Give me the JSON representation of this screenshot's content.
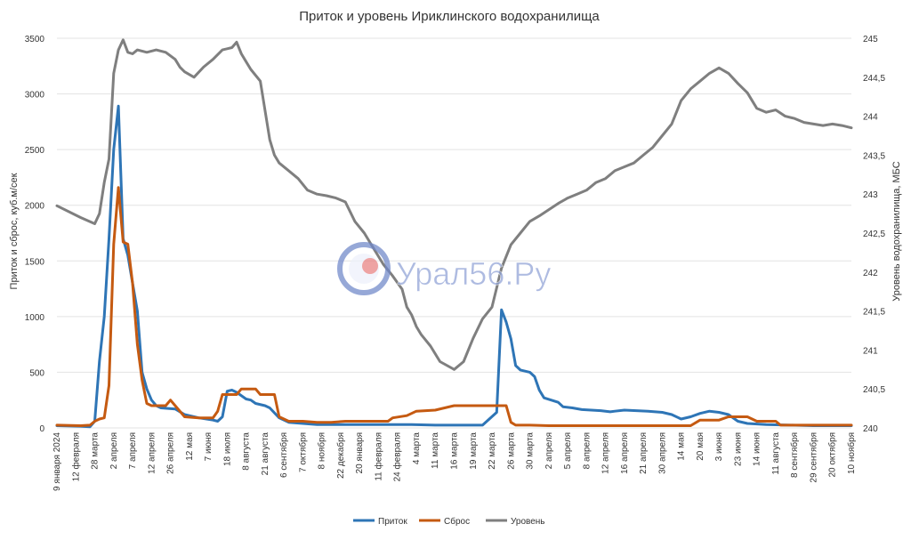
{
  "watermark": {
    "text": "Урал56.Ру"
  },
  "chart_data": {
    "type": "line",
    "title": "Приток и уровень Ириклинского водохранилища",
    "ylabel": "Приток и сброс, куб.м/сек",
    "y2label": "Уровень водохранилища, МБС",
    "ylim": [
      0,
      3500
    ],
    "y2lim": [
      240,
      245
    ],
    "yticks": [
      "0",
      "500",
      "1000",
      "1500",
      "2000",
      "2500",
      "3000",
      "3500"
    ],
    "y2ticks": [
      "240",
      "240,5",
      "241",
      "241,5",
      "242",
      "242,5",
      "243",
      "243,5",
      "244",
      "244,5",
      "245"
    ],
    "xticks": [
      "9 января 2024",
      "12 февраля",
      "28 марта",
      "2 апреля",
      "7 апреля",
      "12 апреля",
      "26 апреля",
      "12 мая",
      "7 июня",
      "18 июля",
      "8 августа",
      "21 августа",
      "6 сентября",
      "7 октября",
      "8 ноября",
      "22 декабря",
      "20 января",
      "11 февраля",
      "24 февраля",
      "4 марта",
      "11 марта",
      "16 марта",
      "19 марта",
      "22 марта",
      "26 марта",
      "30 марта",
      "2 апреля",
      "5 апреля",
      "8 апреля",
      "12 апреля",
      "16 апреля",
      "21 апреля",
      "30 апреля",
      "14 мая",
      "20 мая",
      "3 июня",
      "23 июня",
      "14 июня",
      "11 августа",
      "8 сентября",
      "29 сентября",
      "20 октября",
      "10 ноября"
    ],
    "grid": true,
    "legend_position": "bottom",
    "n_points": 169,
    "series": [
      {
        "name": "Приток",
        "axis": "left",
        "color": "#2E75B6",
        "points": [
          [
            0,
            20
          ],
          [
            5,
            15
          ],
          [
            7,
            10
          ],
          [
            8,
            60
          ],
          [
            9,
            600
          ],
          [
            10,
            1000
          ],
          [
            11,
            1700
          ],
          [
            12,
            2500
          ],
          [
            13,
            2890
          ],
          [
            14,
            1700
          ],
          [
            15,
            1550
          ],
          [
            16,
            1300
          ],
          [
            17,
            1050
          ],
          [
            18,
            500
          ],
          [
            19,
            350
          ],
          [
            20,
            250
          ],
          [
            21,
            200
          ],
          [
            22,
            180
          ],
          [
            25,
            170
          ],
          [
            27,
            120
          ],
          [
            30,
            90
          ],
          [
            33,
            70
          ],
          [
            34,
            60
          ],
          [
            35,
            100
          ],
          [
            36,
            330
          ],
          [
            37,
            340
          ],
          [
            38,
            320
          ],
          [
            40,
            260
          ],
          [
            41,
            250
          ],
          [
            42,
            220
          ],
          [
            44,
            200
          ],
          [
            45,
            180
          ],
          [
            47,
            90
          ],
          [
            49,
            50
          ],
          [
            52,
            40
          ],
          [
            55,
            30
          ],
          [
            60,
            30
          ],
          [
            70,
            30
          ],
          [
            75,
            30
          ],
          [
            80,
            25
          ],
          [
            90,
            25
          ],
          [
            93,
            140
          ],
          [
            94,
            1060
          ],
          [
            95,
            950
          ],
          [
            96,
            800
          ],
          [
            97,
            560
          ],
          [
            98,
            520
          ],
          [
            100,
            500
          ],
          [
            101,
            460
          ],
          [
            102,
            340
          ],
          [
            103,
            270
          ],
          [
            106,
            230
          ],
          [
            107,
            190
          ],
          [
            109,
            180
          ],
          [
            111,
            165
          ],
          [
            113,
            160
          ],
          [
            115,
            155
          ],
          [
            117,
            145
          ],
          [
            118,
            150
          ],
          [
            120,
            160
          ],
          [
            125,
            150
          ],
          [
            128,
            140
          ],
          [
            130,
            120
          ],
          [
            132,
            80
          ],
          [
            134,
            100
          ],
          [
            136,
            130
          ],
          [
            138,
            150
          ],
          [
            140,
            140
          ],
          [
            142,
            120
          ],
          [
            144,
            60
          ],
          [
            146,
            40
          ],
          [
            150,
            30
          ],
          [
            155,
            25
          ],
          [
            160,
            20
          ],
          [
            165,
            20
          ],
          [
            168,
            20
          ]
        ]
      },
      {
        "name": "Сброс",
        "axis": "left",
        "color": "#C55A11",
        "points": [
          [
            0,
            25
          ],
          [
            5,
            20
          ],
          [
            7,
            25
          ],
          [
            8,
            60
          ],
          [
            9,
            80
          ],
          [
            10,
            90
          ],
          [
            11,
            380
          ],
          [
            12,
            1650
          ],
          [
            13,
            2160
          ],
          [
            14,
            1670
          ],
          [
            15,
            1650
          ],
          [
            16,
            1300
          ],
          [
            17,
            750
          ],
          [
            18,
            430
          ],
          [
            19,
            220
          ],
          [
            20,
            200
          ],
          [
            22,
            200
          ],
          [
            23,
            200
          ],
          [
            24,
            250
          ],
          [
            25,
            200
          ],
          [
            27,
            100
          ],
          [
            30,
            90
          ],
          [
            33,
            90
          ],
          [
            34,
            150
          ],
          [
            35,
            300
          ],
          [
            36,
            300
          ],
          [
            38,
            300
          ],
          [
            39,
            350
          ],
          [
            42,
            350
          ],
          [
            43,
            300
          ],
          [
            46,
            300
          ],
          [
            47,
            100
          ],
          [
            49,
            60
          ],
          [
            52,
            60
          ],
          [
            55,
            50
          ],
          [
            58,
            50
          ],
          [
            61,
            60
          ],
          [
            70,
            60
          ],
          [
            71,
            90
          ],
          [
            74,
            110
          ],
          [
            76,
            150
          ],
          [
            80,
            160
          ],
          [
            84,
            200
          ],
          [
            92,
            200
          ],
          [
            93,
            200
          ],
          [
            94,
            200
          ],
          [
            95,
            200
          ],
          [
            96,
            50
          ],
          [
            97,
            25
          ],
          [
            100,
            25
          ],
          [
            104,
            20
          ],
          [
            110,
            20
          ],
          [
            120,
            20
          ],
          [
            130,
            20
          ],
          [
            134,
            20
          ],
          [
            136,
            70
          ],
          [
            140,
            70
          ],
          [
            142,
            100
          ],
          [
            146,
            100
          ],
          [
            148,
            60
          ],
          [
            152,
            60
          ],
          [
            153,
            25
          ],
          [
            160,
            25
          ],
          [
            168,
            25
          ]
        ]
      },
      {
        "name": "Уровень",
        "axis": "right",
        "color": "#7F7F7F",
        "points": [
          [
            0,
            242.85
          ],
          [
            5,
            242.7
          ],
          [
            8,
            242.62
          ],
          [
            9,
            242.75
          ],
          [
            10,
            243.15
          ],
          [
            11,
            243.45
          ],
          [
            12,
            244.55
          ],
          [
            13,
            244.85
          ],
          [
            14,
            244.98
          ],
          [
            15,
            244.82
          ],
          [
            16,
            244.8
          ],
          [
            17,
            244.85
          ],
          [
            19,
            244.82
          ],
          [
            21,
            244.85
          ],
          [
            23,
            244.82
          ],
          [
            25,
            244.73
          ],
          [
            26,
            244.63
          ],
          [
            27,
            244.57
          ],
          [
            29,
            244.5
          ],
          [
            31,
            244.63
          ],
          [
            33,
            244.73
          ],
          [
            35,
            244.85
          ],
          [
            37,
            244.88
          ],
          [
            38,
            244.95
          ],
          [
            39,
            244.8
          ],
          [
            40,
            244.7
          ],
          [
            41,
            244.6
          ],
          [
            43,
            244.45
          ],
          [
            45,
            243.7
          ],
          [
            46,
            243.5
          ],
          [
            47,
            243.4
          ],
          [
            49,
            243.3
          ],
          [
            51,
            243.2
          ],
          [
            53,
            243.05
          ],
          [
            55,
            243.0
          ],
          [
            57,
            242.98
          ],
          [
            59,
            242.95
          ],
          [
            61,
            242.9
          ],
          [
            63,
            242.65
          ],
          [
            65,
            242.5
          ],
          [
            67,
            242.3
          ],
          [
            69,
            242.1
          ],
          [
            71,
            241.95
          ],
          [
            73,
            241.78
          ],
          [
            74,
            241.55
          ],
          [
            75,
            241.45
          ],
          [
            76,
            241.3
          ],
          [
            77,
            241.2
          ],
          [
            79,
            241.05
          ],
          [
            81,
            240.85
          ],
          [
            84,
            240.75
          ],
          [
            86,
            240.85
          ],
          [
            88,
            241.15
          ],
          [
            90,
            241.4
          ],
          [
            92,
            241.55
          ],
          [
            94,
            242.05
          ],
          [
            96,
            242.35
          ],
          [
            98,
            242.5
          ],
          [
            100,
            242.65
          ],
          [
            102,
            242.72
          ],
          [
            104,
            242.8
          ],
          [
            106,
            242.88
          ],
          [
            108,
            242.95
          ],
          [
            110,
            243.0
          ],
          [
            112,
            243.05
          ],
          [
            114,
            243.15
          ],
          [
            116,
            243.2
          ],
          [
            118,
            243.3
          ],
          [
            120,
            243.35
          ],
          [
            122,
            243.4
          ],
          [
            124,
            243.5
          ],
          [
            126,
            243.6
          ],
          [
            128,
            243.75
          ],
          [
            130,
            243.9
          ],
          [
            132,
            244.2
          ],
          [
            134,
            244.35
          ],
          [
            136,
            244.45
          ],
          [
            138,
            244.55
          ],
          [
            140,
            244.62
          ],
          [
            142,
            244.55
          ],
          [
            144,
            244.42
          ],
          [
            146,
            244.3
          ],
          [
            148,
            244.1
          ],
          [
            150,
            244.05
          ],
          [
            152,
            244.08
          ],
          [
            154,
            244.0
          ],
          [
            156,
            243.97
          ],
          [
            158,
            243.92
          ],
          [
            160,
            243.9
          ],
          [
            162,
            243.88
          ],
          [
            164,
            243.9
          ],
          [
            166,
            243.88
          ],
          [
            168,
            243.85
          ]
        ]
      }
    ]
  }
}
